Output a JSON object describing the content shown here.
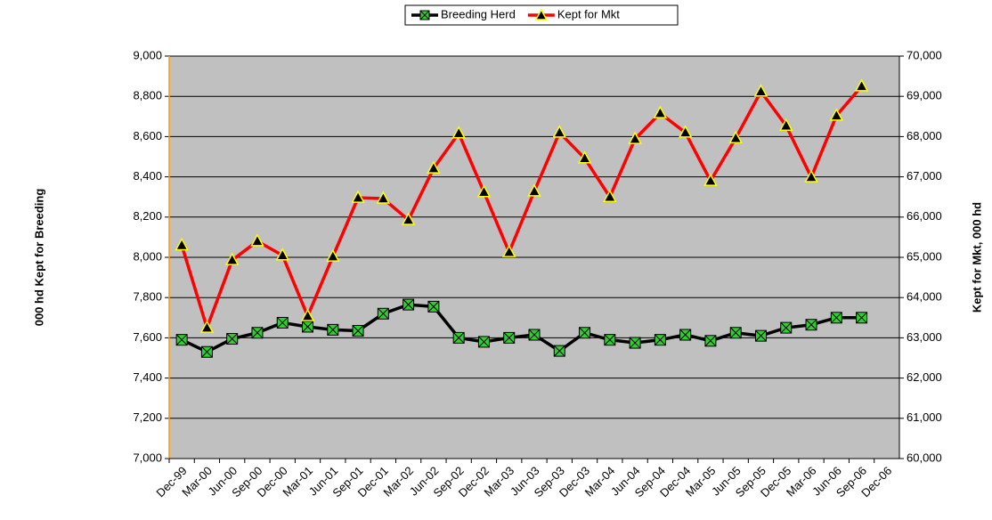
{
  "chart_data": {
    "type": "line",
    "categories": [
      "Dec-99",
      "Mar-00",
      "Jun-00",
      "Sep-00",
      "Dec-00",
      "Mar-01",
      "Jun-01",
      "Sep-01",
      "Dec-01",
      "Mar-02",
      "Jun-02",
      "Sep-02",
      "Dec-02",
      "Mar-03",
      "Jun-03",
      "Sep-03",
      "Dec-03",
      "Mar-04",
      "Jun-04",
      "Sep-04",
      "Dec-04",
      "Mar-05",
      "Jun-05",
      "Sep-05",
      "Dec-05",
      "Mar-06",
      "Jun-06",
      "Sep-06",
      "Dec-06"
    ],
    "series": [
      {
        "name": "Breeding Herd",
        "color": "#000000",
        "marker_color": "#33cc33",
        "axis": "y",
        "values": [
          7590,
          7530,
          7595,
          7625,
          7675,
          7655,
          7640,
          7635,
          7720,
          7765,
          7755,
          7600,
          7580,
          7600,
          7615,
          7535,
          7625,
          7590,
          7575,
          7590,
          7615,
          7585,
          7625,
          7610,
          7650,
          7665,
          7700,
          7700,
          null
        ]
      },
      {
        "name": "Kept for Mkt",
        "color": "#ff0000",
        "marker_color": "#ffff00",
        "axis": "y2",
        "values": [
          65300,
          63250,
          64930,
          65400,
          65050,
          63540,
          65020,
          66480,
          66460,
          65930,
          67210,
          68080,
          66620,
          65130,
          66640,
          68100,
          67460,
          66500,
          67940,
          68580,
          68100,
          66900,
          67960,
          69120,
          68270,
          66990,
          68520,
          69250,
          null
        ]
      }
    ],
    "ylabel": "000 hd Kept for Breeding",
    "y2label": "Kept for Mkt, 000 hd",
    "ylim": [
      7000,
      9000
    ],
    "yticks": [
      {
        "value": 7000,
        "label": "7,000"
      },
      {
        "value": 7200,
        "label": "7,200"
      },
      {
        "value": 7400,
        "label": "7,400"
      },
      {
        "value": 7600,
        "label": "7,600"
      },
      {
        "value": 7800,
        "label": "7,800"
      },
      {
        "value": 8000,
        "label": "8,000"
      },
      {
        "value": 8200,
        "label": "8,200"
      },
      {
        "value": 8400,
        "label": "8,400"
      },
      {
        "value": 8600,
        "label": "8,600"
      },
      {
        "value": 8800,
        "label": "8,800"
      },
      {
        "value": 9000,
        "label": "9,000"
      }
    ],
    "y2lim": [
      60000,
      70000
    ],
    "y2ticks": [
      {
        "value": 60000,
        "label": "60,000"
      },
      {
        "value": 61000,
        "label": "61,000"
      },
      {
        "value": 62000,
        "label": "62,000"
      },
      {
        "value": 63000,
        "label": "63,000"
      },
      {
        "value": 64000,
        "label": "64,000"
      },
      {
        "value": 65000,
        "label": "65,000"
      },
      {
        "value": 66000,
        "label": "66,000"
      },
      {
        "value": 67000,
        "label": "67,000"
      },
      {
        "value": 68000,
        "label": "68,000"
      },
      {
        "value": 69000,
        "label": "69,000"
      },
      {
        "value": 70000,
        "label": "70,000"
      }
    ],
    "grid": true,
    "legend": "top"
  }
}
